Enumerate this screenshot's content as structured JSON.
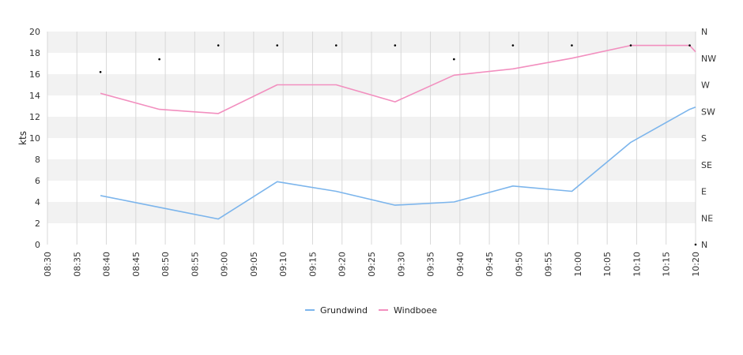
{
  "chart_data": {
    "type": "line",
    "ylabel": "kts",
    "ylim": [
      0,
      20
    ],
    "yticks": [
      0,
      2,
      4,
      6,
      8,
      10,
      12,
      14,
      16,
      18,
      20
    ],
    "xlim": [
      "08:30",
      "10:20"
    ],
    "xticks": [
      "08:30",
      "08:35",
      "08:40",
      "08:45",
      "08:50",
      "08:55",
      "09:00",
      "09:05",
      "09:10",
      "09:15",
      "09:20",
      "09:25",
      "09:30",
      "09:35",
      "09:40",
      "09:45",
      "09:50",
      "09:55",
      "10:00",
      "10:05",
      "10:10",
      "10:15",
      "10:20"
    ],
    "direction_axis": [
      "N",
      "NE",
      "E",
      "SE",
      "S",
      "SW",
      "W",
      "NW",
      "N"
    ],
    "grid": "alternating horizontal bands, vertical gridlines every 5 min",
    "legend_position": "bottom-center",
    "series": [
      {
        "name": "Grundwind",
        "color": "#7cb5ec",
        "x": [
          "08:39",
          "08:49",
          "08:59",
          "09:09",
          "09:19",
          "09:29",
          "09:39",
          "09:49",
          "09:59",
          "10:09",
          "10:19",
          "10:20"
        ],
        "values": [
          4.6,
          3.5,
          2.4,
          5.9,
          5.0,
          3.7,
          4.0,
          5.5,
          5.0,
          9.6,
          12.7,
          12.9
        ]
      },
      {
        "name": "Windboee",
        "color": "#f28fbf",
        "x": [
          "08:39",
          "08:49",
          "08:59",
          "09:09",
          "09:19",
          "09:29",
          "09:39",
          "09:49",
          "09:59",
          "10:09",
          "10:19",
          "10:20"
        ],
        "values": [
          14.2,
          12.7,
          12.3,
          15.0,
          15.0,
          13.4,
          15.9,
          16.5,
          17.5,
          18.7,
          18.7,
          18.1
        ]
      }
    ],
    "direction_markers": {
      "x": [
        "08:39",
        "08:49",
        "08:59",
        "09:09",
        "09:19",
        "09:29",
        "09:39",
        "09:49",
        "09:59",
        "10:09",
        "10:19",
        "10:20"
      ],
      "values": [
        16.2,
        17.4,
        18.7,
        18.7,
        18.7,
        18.7,
        17.4,
        18.7,
        18.7,
        18.7,
        18.7,
        0
      ]
    }
  }
}
